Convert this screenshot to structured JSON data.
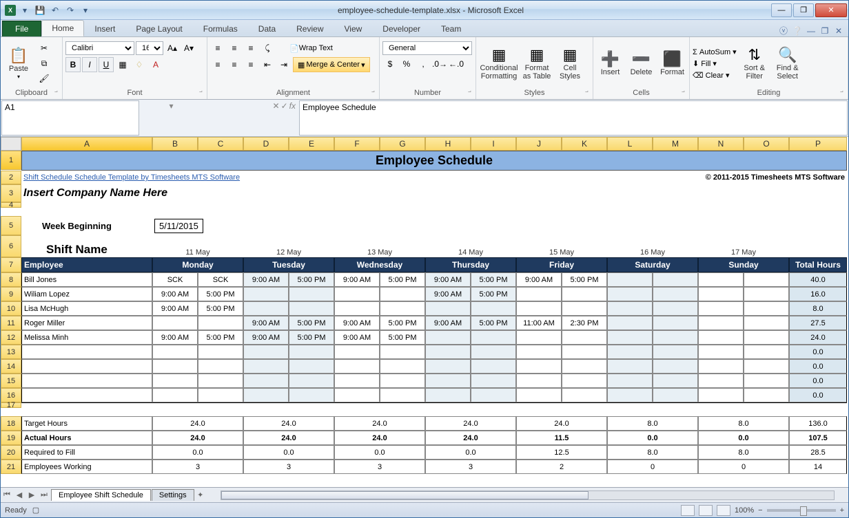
{
  "window": {
    "title": "employee-schedule-template.xlsx - Microsoft Excel",
    "qat": [
      "💾",
      "↶",
      "↷"
    ]
  },
  "ribbon": {
    "file": "File",
    "tabs": [
      "Home",
      "Insert",
      "Page Layout",
      "Formulas",
      "Data",
      "Review",
      "View",
      "Developer",
      "Team"
    ],
    "active_tab": "Home",
    "clipboard": {
      "label": "Clipboard",
      "paste": "Paste"
    },
    "font": {
      "label": "Font",
      "name": "Calibri",
      "size": "16",
      "bold": "B",
      "italic": "I",
      "underline": "U"
    },
    "alignment": {
      "label": "Alignment",
      "wrap": "Wrap Text",
      "merge": "Merge & Center"
    },
    "number": {
      "label": "Number",
      "format": "General"
    },
    "styles": {
      "label": "Styles",
      "cond": "Conditional\nFormatting",
      "table": "Format\nas Table",
      "cell": "Cell\nStyles"
    },
    "cells": {
      "label": "Cells",
      "insert": "Insert",
      "delete": "Delete",
      "format": "Format"
    },
    "editing": {
      "label": "Editing",
      "autosum": "AutoSum",
      "fill": "Fill",
      "clear": "Clear",
      "sort": "Sort &\nFilter",
      "find": "Find &\nSelect"
    }
  },
  "formula_bar": {
    "name_box": "A1",
    "fx": "fx",
    "value": "Employee Schedule"
  },
  "columns": [
    "A",
    "B",
    "C",
    "D",
    "E",
    "F",
    "G",
    "H",
    "I",
    "J",
    "K",
    "L",
    "M",
    "N",
    "O",
    "P"
  ],
  "sheet": {
    "title": "Employee Schedule",
    "link": "Shift Schedule Schedule Template by Timesheets MTS Software",
    "copyright": "© 2011-2015 Timesheets MTS Software",
    "company": "Insert Company Name Here",
    "week_label": "Week Beginning",
    "week_value": "5/11/2015",
    "shift_label": "Shift Name",
    "dates": [
      "11 May",
      "12 May",
      "13 May",
      "14 May",
      "15 May",
      "16 May",
      "17 May"
    ],
    "days": [
      "Monday",
      "Tuesday",
      "Wednesday",
      "Thursday",
      "Friday",
      "Saturday",
      "Sunday"
    ],
    "employee_hdr": "Employee",
    "total_hdr": "Total Hours",
    "rows": [
      {
        "num": 8,
        "name": "Bill Jones",
        "cells": [
          "SCK",
          "SCK",
          "9:00 AM",
          "5:00 PM",
          "9:00 AM",
          "5:00 PM",
          "9:00 AM",
          "5:00 PM",
          "9:00 AM",
          "5:00 PM",
          "",
          "",
          "",
          ""
        ],
        "total": "40.0"
      },
      {
        "num": 9,
        "name": "Wiliam Lopez",
        "cells": [
          "9:00 AM",
          "5:00 PM",
          "",
          "",
          "",
          "",
          "9:00 AM",
          "5:00 PM",
          "",
          "",
          "",
          "",
          "",
          ""
        ],
        "total": "16.0"
      },
      {
        "num": 10,
        "name": "Lisa McHugh",
        "cells": [
          "9:00 AM",
          "5:00 PM",
          "",
          "",
          "",
          "",
          "",
          "",
          "",
          "",
          "",
          "",
          "",
          ""
        ],
        "total": "8.0"
      },
      {
        "num": 11,
        "name": "Roger Miller",
        "cells": [
          "",
          "",
          "9:00 AM",
          "5:00 PM",
          "9:00 AM",
          "5:00 PM",
          "9:00 AM",
          "5:00 PM",
          "11:00 AM",
          "2:30 PM",
          "",
          "",
          "",
          ""
        ],
        "total": "27.5"
      },
      {
        "num": 12,
        "name": "Melissa Minh",
        "cells": [
          "9:00 AM",
          "5:00 PM",
          "9:00 AM",
          "5:00 PM",
          "9:00 AM",
          "5:00 PM",
          "",
          "",
          "",
          "",
          "",
          "",
          "",
          ""
        ],
        "total": "24.0"
      },
      {
        "num": 13,
        "name": "",
        "cells": [
          "",
          "",
          "",
          "",
          "",
          "",
          "",
          "",
          "",
          "",
          "",
          "",
          "",
          ""
        ],
        "total": "0.0"
      },
      {
        "num": 14,
        "name": "",
        "cells": [
          "",
          "",
          "",
          "",
          "",
          "",
          "",
          "",
          "",
          "",
          "",
          "",
          "",
          ""
        ],
        "total": "0.0"
      },
      {
        "num": 15,
        "name": "",
        "cells": [
          "",
          "",
          "",
          "",
          "",
          "",
          "",
          "",
          "",
          "",
          "",
          "",
          "",
          ""
        ],
        "total": "0.0"
      },
      {
        "num": 16,
        "name": "",
        "cells": [
          "",
          "",
          "",
          "",
          "",
          "",
          "",
          "",
          "",
          "",
          "",
          "",
          "",
          ""
        ],
        "total": "0.0"
      }
    ],
    "summary": [
      {
        "num": 18,
        "label": "Target Hours",
        "vals": [
          "24.0",
          "24.0",
          "24.0",
          "24.0",
          "24.0",
          "8.0",
          "8.0"
        ],
        "total": "136.0",
        "bold": false
      },
      {
        "num": 19,
        "label": "Actual Hours",
        "vals": [
          "24.0",
          "24.0",
          "24.0",
          "24.0",
          "11.5",
          "0.0",
          "0.0"
        ],
        "total": "107.5",
        "bold": true
      },
      {
        "num": 20,
        "label": "Required to Fill",
        "vals": [
          "0.0",
          "0.0",
          "0.0",
          "0.0",
          "12.5",
          "8.0",
          "8.0"
        ],
        "total": "28.5",
        "bold": false
      },
      {
        "num": 21,
        "label": "Employees Working",
        "vals": [
          "3",
          "3",
          "3",
          "3",
          "2",
          "0",
          "0"
        ],
        "total": "14",
        "bold": false
      }
    ]
  },
  "tabs": {
    "active": "Employee Shift Schedule",
    "other": "Settings"
  },
  "status": {
    "ready": "Ready",
    "zoom": "100%"
  },
  "colors": {
    "title_bg": "#8cb3e2",
    "header_dark": "#1f3a5f",
    "alt_cell": "#e8f0f5",
    "total_cell": "#dae7f0"
  }
}
